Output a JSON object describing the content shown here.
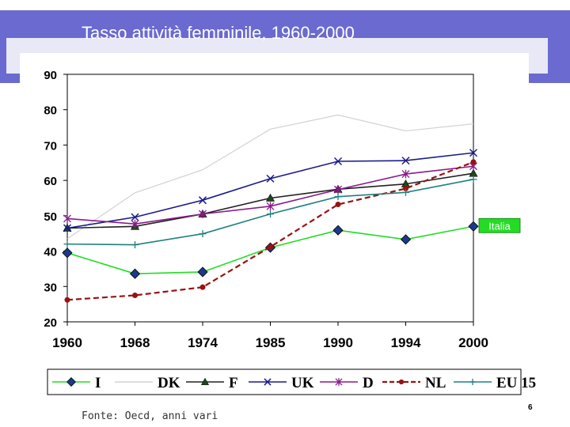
{
  "slide": {
    "title": "Tasso attività femminile, 1960-2000",
    "source": "Fonte: Oecd, anni vari",
    "page_number": "6"
  },
  "chart_data": {
    "type": "line",
    "title": "Tasso attività femminile, 1960-2000",
    "categories": [
      "1960",
      "1968",
      "1974",
      "1985",
      "1990",
      "1994",
      "2000"
    ],
    "ylim": [
      20,
      90
    ],
    "yticks": [
      20,
      30,
      40,
      50,
      60,
      70,
      80,
      90
    ],
    "grid": false,
    "legend_position": "bottom",
    "annotation": {
      "text": "Italia",
      "series": "I",
      "category": "2000"
    },
    "series": [
      {
        "name": "I",
        "color": "#22dd22",
        "marker": "diamond",
        "dash": "solid",
        "values": [
          39.5,
          33.6,
          34.1,
          41,
          45.9,
          43.3,
          47
        ]
      },
      {
        "name": "DK",
        "color": "#d2d2d2",
        "marker": "none",
        "dash": "solid",
        "values": [
          43.5,
          56.5,
          63,
          74.5,
          78.5,
          74,
          76
        ]
      },
      {
        "name": "F",
        "color": "#222222",
        "marker": "triangle",
        "dash": "solid",
        "values": [
          46.5,
          47,
          50.5,
          55,
          57.5,
          59,
          62
        ]
      },
      {
        "name": "UK",
        "color": "#1a1a8c",
        "marker": "x",
        "dash": "solid",
        "values": [
          46.5,
          49.6,
          54.4,
          60.5,
          65.4,
          65.6,
          67.8
        ]
      },
      {
        "name": "D",
        "color": "#8a1a8a",
        "marker": "star",
        "dash": "solid",
        "values": [
          49.2,
          47.7,
          50.5,
          52.7,
          57.4,
          61.8,
          64
        ]
      },
      {
        "name": "NL",
        "color": "#991111",
        "marker": "circle",
        "dash": "dashed",
        "values": [
          26.2,
          27.5,
          29.8,
          41.2,
          53.2,
          57.7,
          65.2
        ]
      },
      {
        "name": "EU 15",
        "color": "#208080",
        "marker": "plus",
        "dash": "solid",
        "values": [
          42,
          41.8,
          44.9,
          50.5,
          55.4,
          56.6,
          60.3
        ]
      }
    ]
  }
}
